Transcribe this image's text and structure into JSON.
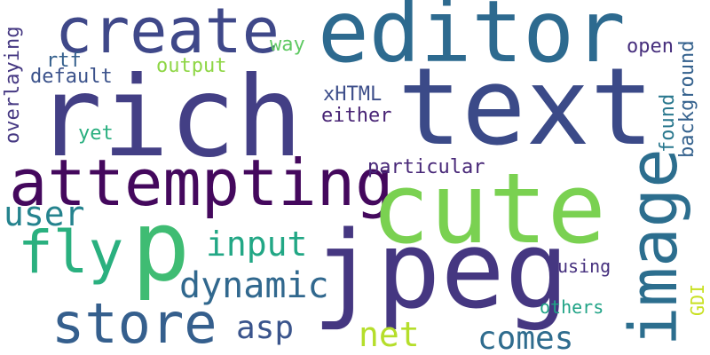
{
  "words": [
    {
      "text": "editor",
      "color": "#2d6a8f"
    },
    {
      "text": "rich",
      "color": "#433f85"
    },
    {
      "text": "text",
      "color": "#3b4a88"
    },
    {
      "text": "create",
      "color": "#3f4889"
    },
    {
      "text": "attempting",
      "color": "#44085d"
    },
    {
      "text": "cute",
      "color": "#7ad151"
    },
    {
      "text": "jpeg",
      "color": "#453781"
    },
    {
      "text": "p",
      "color": "#3fbc73"
    },
    {
      "text": "fly",
      "color": "#2ab07f"
    },
    {
      "text": "image",
      "color": "#2c6e8e"
    },
    {
      "text": "store",
      "color": "#355f8d"
    },
    {
      "text": "dynamic",
      "color": "#31688e"
    },
    {
      "text": "user",
      "color": "#25838e"
    },
    {
      "text": "input",
      "color": "#22a785"
    },
    {
      "text": "asp",
      "color": "#3a548c"
    },
    {
      "text": "net",
      "color": "#b5de2b"
    },
    {
      "text": "comes",
      "color": "#2f6c8e"
    },
    {
      "text": "way",
      "color": "#5ec962"
    },
    {
      "text": "output",
      "color": "#8ed645"
    },
    {
      "text": "rtf",
      "color": "#35608d"
    },
    {
      "text": "default",
      "color": "#3b528b"
    },
    {
      "text": "overlaying",
      "color": "#453882"
    },
    {
      "text": "yet",
      "color": "#29af7f"
    },
    {
      "text": "xHTML",
      "color": "#3d4e8a"
    },
    {
      "text": "either",
      "color": "#482475"
    },
    {
      "text": "particular",
      "color": "#482878"
    },
    {
      "text": "open",
      "color": "#472f7d"
    },
    {
      "text": "found",
      "color": "#2a788e"
    },
    {
      "text": "background",
      "color": "#34618d"
    },
    {
      "text": "using",
      "color": "#46307e"
    },
    {
      "text": "others",
      "color": "#20a386"
    },
    {
      "text": "GDI",
      "color": "#c8e020"
    }
  ]
}
